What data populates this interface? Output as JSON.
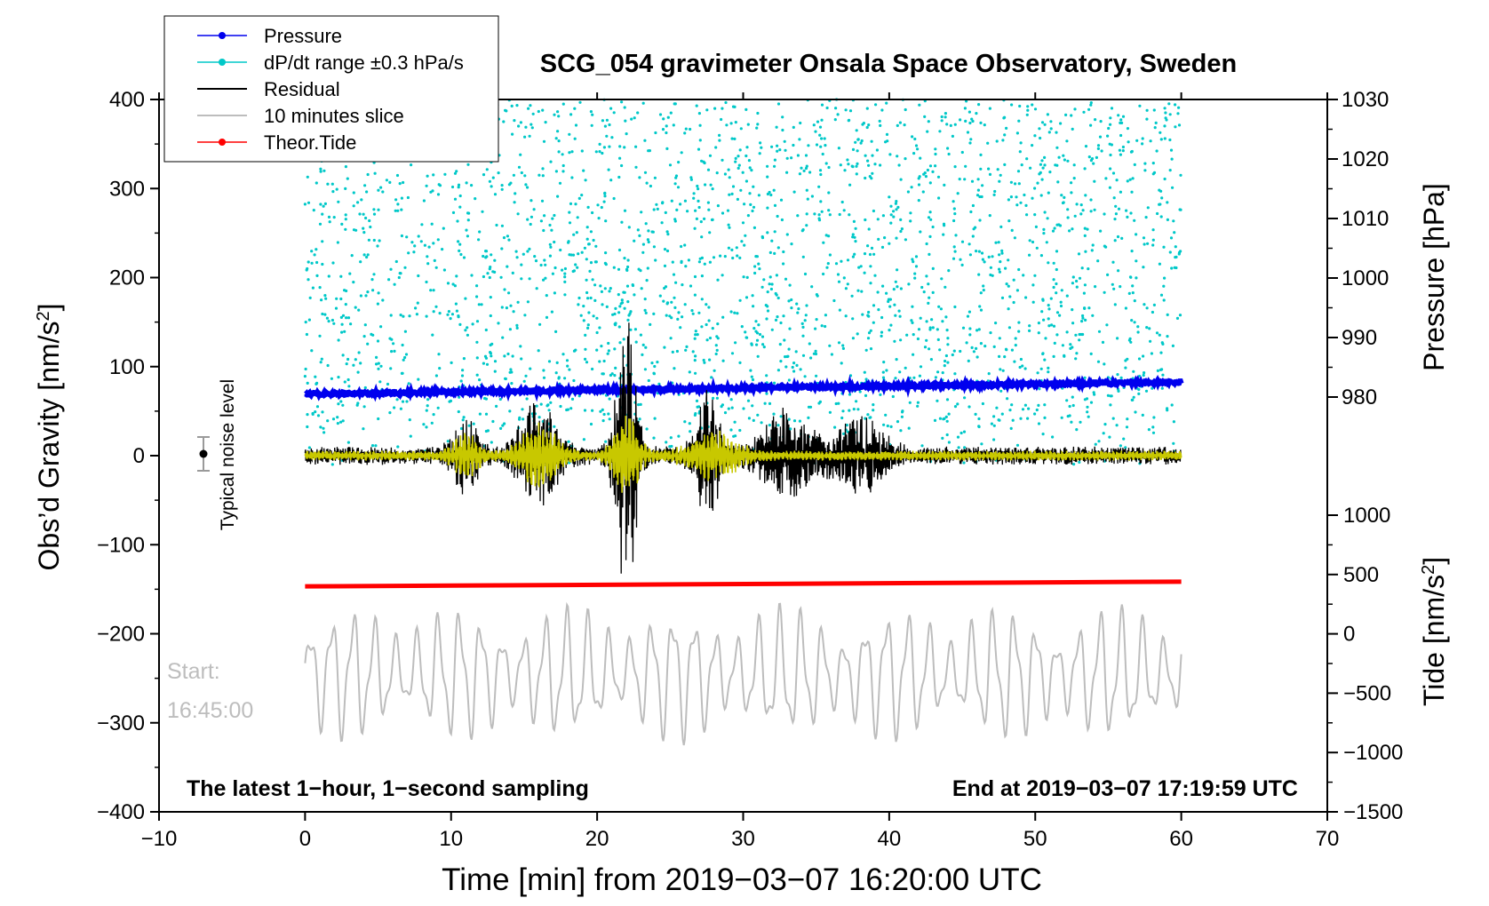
{
  "chart_data": {
    "type": "line",
    "title": "SCG_054 gravimeter Onsala Space Observatory, Sweden",
    "xlabel": "Time [min] from 2019−03−07 16:20:00 UTC",
    "ylabel": "Obs’d Gravity [nm/s",
    "ylabel_sup": "2",
    "ylabel_close": "]",
    "right_pressure_label": "Pressure [hPa]",
    "right_tide_label": "Tide [nm/s",
    "right_tide_sup": "2",
    "right_tide_close": "]",
    "xlim": [
      -10,
      70
    ],
    "ylim": [
      -400,
      400
    ],
    "x_ticks": [
      "−10",
      "0",
      "10",
      "20",
      "30",
      "40",
      "50",
      "60",
      "70"
    ],
    "y_ticks": [
      "400",
      "300",
      "200",
      "100",
      "0",
      "−100",
      "−200",
      "−300",
      "−400"
    ],
    "pressure_ticks": [
      "1030",
      "1020",
      "1010",
      "1000",
      "990",
      "980"
    ],
    "pressure_range": [
      980,
      1030
    ],
    "tide_ticks": [
      "1000",
      "500",
      "0",
      "−500",
      "−1000",
      "−1500"
    ],
    "tide_range": [
      -1500,
      1000
    ],
    "legend": [
      {
        "label": "Pressure",
        "color": "#0000ee",
        "marker": true
      },
      {
        "label": "dP/dt range ±0.3 hPa/s",
        "color": "#00c8c8",
        "marker": true
      },
      {
        "label": "Residual",
        "color": "#000000",
        "marker": false
      },
      {
        "label": "10 minutes slice",
        "color": "#bdbdbd",
        "marker": false
      },
      {
        "label": "Theor.Tide",
        "color": "#ff0000",
        "marker": true
      }
    ],
    "noise_label": "Typical noise level",
    "start_label": "Start:",
    "start_time": "16:45:00",
    "bottom_left_note": "The latest 1−hour, 1−second sampling",
    "bottom_right_note": "End at 2019−03−07 17:19:59 UTC",
    "series": [
      {
        "name": "Pressure",
        "unit": "hPa",
        "start": 980.5,
        "end": 982.5,
        "color": "#0000ee"
      },
      {
        "name": "Theor.Tide",
        "unit": "nm/s2",
        "start": 400,
        "end": 440,
        "color": "#ff0000"
      },
      {
        "name": "Residual",
        "color": "#000000",
        "noise_amp": 10,
        "bursts": [
          [
            11,
            1.0,
            35
          ],
          [
            16,
            1.5,
            55
          ],
          [
            22,
            0.8,
            150
          ],
          [
            27.5,
            0.9,
            80
          ],
          [
            33,
            2.0,
            45
          ],
          [
            38,
            2.0,
            35
          ]
        ]
      },
      {
        "name": "dP/dt",
        "color": "#c8c800",
        "bursts": [
          [
            11,
            1.0,
            25
          ],
          [
            16,
            1.5,
            35
          ],
          [
            22,
            1.0,
            50
          ],
          [
            28,
            2.0,
            25
          ]
        ]
      },
      {
        "name": "10 minutes slice",
        "color": "#bdbdbd",
        "center": -245,
        "amplitude": 60
      }
    ],
    "colors": {
      "cyan": "#00c8c8",
      "slice": "#bdbdbd",
      "residual": "#000000",
      "dpdt": "#c8c800"
    }
  }
}
